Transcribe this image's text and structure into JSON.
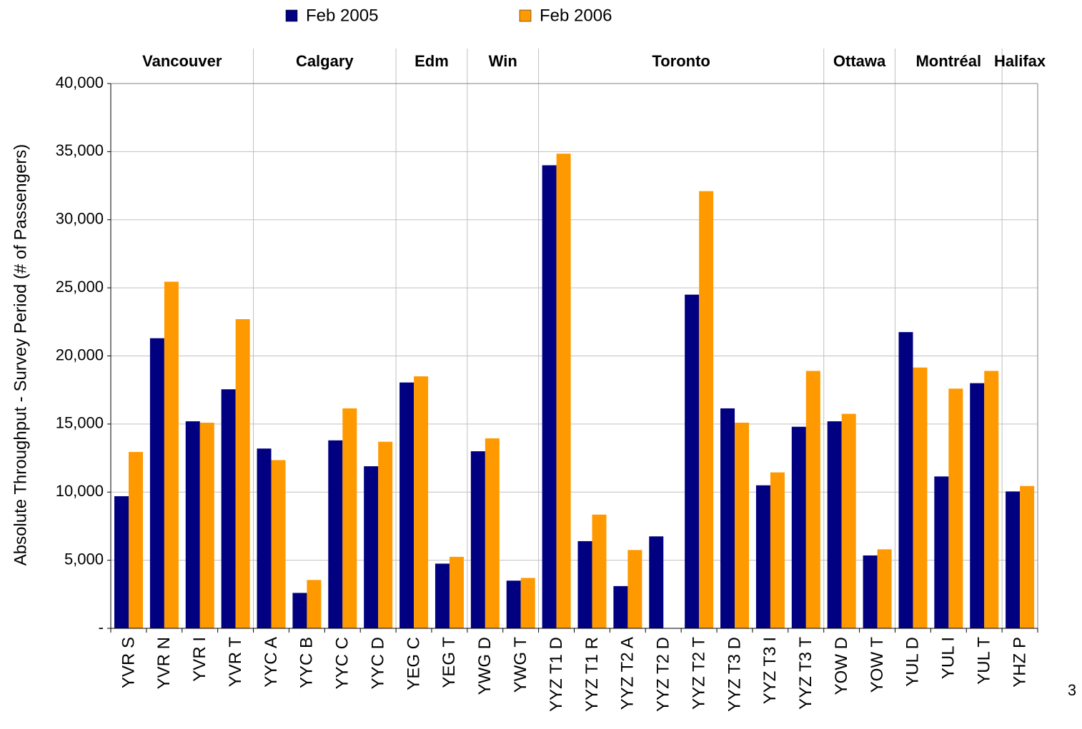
{
  "chart_data": {
    "type": "bar",
    "y_label": "Absolute Throughput - Survey Period (# of Passengers)",
    "categories": [
      "YVR S",
      "YVR N",
      "YVR I",
      "YVR T",
      "YYC A",
      "YYC B",
      "YYC C",
      "YYC D",
      "YEG C",
      "YEG T",
      "YWG D",
      "YWG T",
      "YYZ T1 D",
      "YYZ T1 R",
      "YYZ T2 A",
      "YYZ T2 D",
      "YYZ T2 T",
      "YYZ T3 D",
      "YYZ T3 I",
      "YYZ T3 T",
      "YOW D",
      "YOW T",
      "YUL D",
      "YUL I",
      "YUL T",
      "YHZ P"
    ],
    "groups": [
      {
        "label": "Vancouver",
        "span": 4
      },
      {
        "label": "Calgary",
        "span": 4
      },
      {
        "label": "Edm",
        "span": 2
      },
      {
        "label": "Win",
        "span": 2
      },
      {
        "label": "Toronto",
        "span": 8
      },
      {
        "label": "Ottawa",
        "span": 2
      },
      {
        "label": "Montréal",
        "span": 3
      },
      {
        "label": "Halifax",
        "span": 1
      }
    ],
    "series": [
      {
        "name": "Feb 2005",
        "color": "#000080",
        "values": [
          9700,
          21300,
          15200,
          17550,
          13200,
          2600,
          13800,
          11900,
          18050,
          4750,
          13000,
          3500,
          34000,
          6400,
          3100,
          6750,
          24500,
          16150,
          10500,
          14800,
          15200,
          5350,
          21750,
          11150,
          18000,
          10050
        ]
      },
      {
        "name": "Feb 2006",
        "color": "#ff9900",
        "values": [
          12950,
          25450,
          15100,
          22700,
          12350,
          3550,
          16150,
          13700,
          18500,
          5250,
          13950,
          3700,
          34850,
          8350,
          5750,
          null,
          32100,
          15100,
          11450,
          18900,
          15750,
          5800,
          19150,
          17600,
          18900,
          10450
        ]
      }
    ],
    "ylim": [
      0,
      40000
    ],
    "yticks": [
      {
        "value": 0,
        "label": "-"
      },
      {
        "value": 5000,
        "label": "5,000"
      },
      {
        "value": 10000,
        "label": "10,000"
      },
      {
        "value": 15000,
        "label": "15,000"
      },
      {
        "value": 20000,
        "label": "20,000"
      },
      {
        "value": 25000,
        "label": "25,000"
      },
      {
        "value": 30000,
        "label": "30,000"
      },
      {
        "value": 35000,
        "label": "35,000"
      },
      {
        "value": 40000,
        "label": "40,000"
      }
    ],
    "grid": true
  },
  "page_number": "3"
}
